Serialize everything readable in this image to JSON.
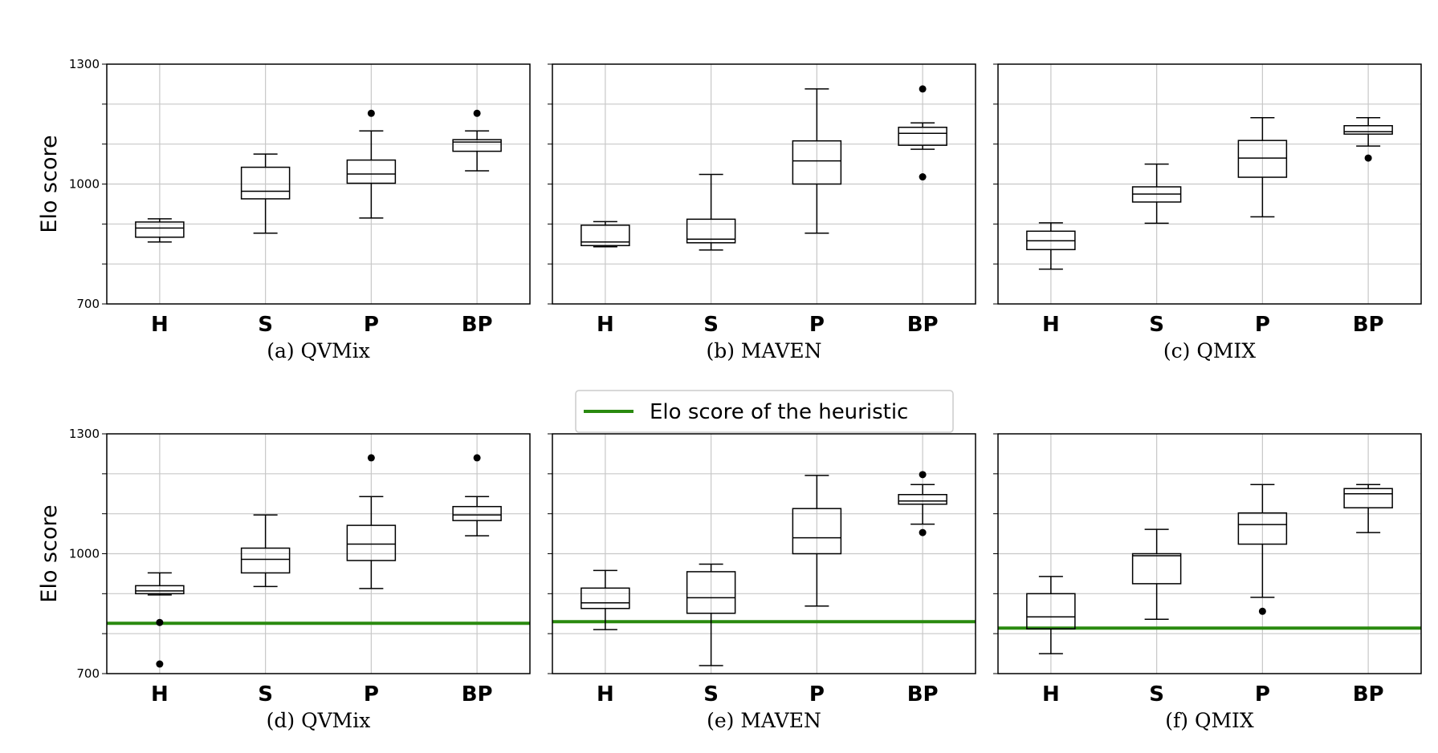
{
  "chart_data": [
    {
      "type": "box",
      "caption": "(a) QVMix",
      "ylabel": "Elo score",
      "ylim": [
        700,
        1300
      ],
      "yticks": [
        "700",
        "1000",
        "1300"
      ],
      "grid": true,
      "categories": [
        "H",
        "S",
        "P",
        "BP"
      ],
      "boxes": [
        {
          "whislo": 855,
          "q1": 867,
          "med": 890,
          "q3": 905,
          "whishi": 913,
          "fliers": []
        },
        {
          "whislo": 877,
          "q1": 963,
          "med": 982,
          "q3": 1042,
          "whishi": 1075,
          "fliers": []
        },
        {
          "whislo": 915,
          "q1": 1002,
          "med": 1025,
          "q3": 1060,
          "whishi": 1133,
          "fliers": [
            1177
          ]
        },
        {
          "whislo": 1033,
          "q1": 1082,
          "med": 1105,
          "q3": 1111,
          "whishi": 1133,
          "fliers": [
            1177
          ]
        }
      ],
      "heuristic": null
    },
    {
      "type": "box",
      "caption": "(b) MAVEN",
      "ylim": [
        700,
        1300
      ],
      "grid": true,
      "categories": [
        "H",
        "S",
        "P",
        "BP"
      ],
      "boxes": [
        {
          "whislo": 843,
          "q1": 846,
          "med": 855,
          "q3": 897,
          "whishi": 906,
          "fliers": []
        },
        {
          "whislo": 835,
          "q1": 853,
          "med": 862,
          "q3": 912,
          "whishi": 1024,
          "fliers": []
        },
        {
          "whislo": 877,
          "q1": 1000,
          "med": 1058,
          "q3": 1108,
          "whishi": 1238,
          "fliers": []
        },
        {
          "whislo": 1087,
          "q1": 1097,
          "med": 1127,
          "q3": 1142,
          "whishi": 1153,
          "fliers": [
            1238,
            1018
          ]
        }
      ],
      "heuristic": null
    },
    {
      "type": "box",
      "caption": "(c) QMIX",
      "ylim": [
        700,
        1300
      ],
      "grid": true,
      "categories": [
        "H",
        "S",
        "P",
        "BP"
      ],
      "boxes": [
        {
          "whislo": 787,
          "q1": 836,
          "med": 858,
          "q3": 882,
          "whishi": 903,
          "fliers": []
        },
        {
          "whislo": 902,
          "q1": 955,
          "med": 975,
          "q3": 993,
          "whishi": 1050,
          "fliers": []
        },
        {
          "whislo": 918,
          "q1": 1017,
          "med": 1065,
          "q3": 1109,
          "whishi": 1166,
          "fliers": []
        },
        {
          "whislo": 1095,
          "q1": 1125,
          "med": 1131,
          "q3": 1146,
          "whishi": 1166,
          "fliers": [
            1065
          ]
        }
      ],
      "heuristic": null
    },
    {
      "type": "box",
      "caption": "(d) QVMix",
      "ylabel": "Elo score",
      "ylim": [
        700,
        1300
      ],
      "yticks": [
        "700",
        "1000",
        "1300"
      ],
      "grid": true,
      "categories": [
        "H",
        "S",
        "P",
        "BP"
      ],
      "boxes": [
        {
          "whislo": 897,
          "q1": 900,
          "med": 907,
          "q3": 920,
          "whishi": 952,
          "fliers": [
            828,
            724
          ]
        },
        {
          "whislo": 918,
          "q1": 952,
          "med": 986,
          "q3": 1014,
          "whishi": 1097,
          "fliers": []
        },
        {
          "whislo": 913,
          "q1": 983,
          "med": 1024,
          "q3": 1071,
          "whishi": 1143,
          "fliers": [
            1240
          ]
        },
        {
          "whislo": 1045,
          "q1": 1083,
          "med": 1097,
          "q3": 1118,
          "whishi": 1143,
          "fliers": [
            1240
          ]
        }
      ],
      "heuristic": 826
    },
    {
      "type": "box",
      "caption": "(e) MAVEN",
      "ylim": [
        700,
        1300
      ],
      "grid": true,
      "categories": [
        "H",
        "S",
        "P",
        "BP"
      ],
      "boxes": [
        {
          "whislo": 810,
          "q1": 863,
          "med": 877,
          "q3": 914,
          "whishi": 958,
          "fliers": []
        },
        {
          "whislo": 720,
          "q1": 851,
          "med": 890,
          "q3": 955,
          "whishi": 974,
          "fliers": []
        },
        {
          "whislo": 869,
          "q1": 1000,
          "med": 1040,
          "q3": 1113,
          "whishi": 1196,
          "fliers": []
        },
        {
          "whislo": 1074,
          "q1": 1124,
          "med": 1132,
          "q3": 1148,
          "whishi": 1173,
          "fliers": [
            1198,
            1053
          ]
        }
      ],
      "heuristic": 830
    },
    {
      "type": "box",
      "caption": "(f) QMIX",
      "ylim": [
        700,
        1300
      ],
      "grid": true,
      "categories": [
        "H",
        "S",
        "P",
        "BP"
      ],
      "boxes": [
        {
          "whislo": 750,
          "q1": 812,
          "med": 842,
          "q3": 900,
          "whishi": 943,
          "fliers": []
        },
        {
          "whislo": 836,
          "q1": 925,
          "med": 995,
          "q3": 1000,
          "whishi": 1061,
          "fliers": []
        },
        {
          "whislo": 891,
          "q1": 1024,
          "med": 1073,
          "q3": 1102,
          "whishi": 1173,
          "fliers": [
            856
          ]
        },
        {
          "whislo": 1053,
          "q1": 1115,
          "med": 1150,
          "q3": 1163,
          "whishi": 1173,
          "fliers": []
        }
      ],
      "heuristic": 814
    }
  ],
  "legend": {
    "label": "Elo score of the heuristic",
    "color": "#2a8a0f",
    "placement": "center, between rows"
  },
  "colors": {
    "heuristic_line": "#2a8a0f",
    "grid": "#c8c8c8",
    "axes": "#000000"
  }
}
